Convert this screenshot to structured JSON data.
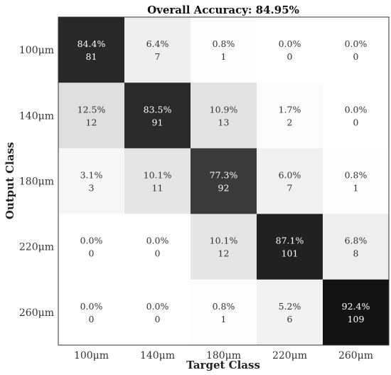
{
  "chart_data": {
    "type": "heatmap",
    "title": "Overall Accuracy: 84.95%",
    "xlabel": "Target Class",
    "ylabel": "Output Class",
    "x_categories": [
      "100μm",
      "140μm",
      "180μm",
      "220μm",
      "260μm"
    ],
    "y_categories": [
      "100μm",
      "140μm",
      "180μm",
      "220μm",
      "260μm"
    ],
    "percent_labels": [
      [
        "84.4%",
        "6.4%",
        "0.8%",
        "0.0%",
        "0.0%"
      ],
      [
        "12.5%",
        "83.5%",
        "10.9%",
        "1.7%",
        "0.0%"
      ],
      [
        "3.1%",
        "10.1%",
        "77.3%",
        "6.0%",
        "0.8%"
      ],
      [
        "0.0%",
        "0.0%",
        "10.1%",
        "87.1%",
        "6.8%"
      ],
      [
        "0.0%",
        "0.0%",
        "0.8%",
        "5.2%",
        "92.4%"
      ]
    ],
    "counts": [
      [
        81,
        7,
        1,
        0,
        0
      ],
      [
        12,
        91,
        13,
        2,
        0
      ],
      [
        3,
        11,
        92,
        7,
        1
      ],
      [
        0,
        0,
        12,
        101,
        8
      ],
      [
        0,
        0,
        1,
        6,
        109
      ]
    ],
    "colormap": "grayscale (white = 0%, black = 100%)",
    "grid": false
  }
}
